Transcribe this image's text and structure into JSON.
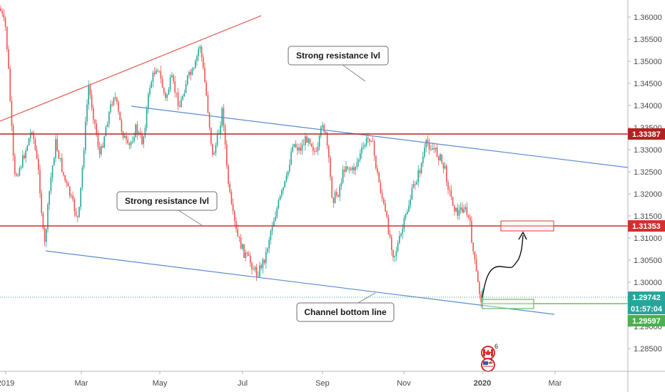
{
  "chart_data": {
    "type": "candlestick",
    "x_axis": {
      "ticks": [
        "2019",
        "Mar",
        "May",
        "Jul",
        "Sep",
        "Nov",
        "2020",
        "Mar"
      ]
    },
    "y_axis": {
      "range": [
        1.2825,
        1.3635
      ],
      "ticks": [
        "1.36000",
        "1.35500",
        "1.35000",
        "1.34500",
        "1.34000",
        "1.33500",
        "1.33000",
        "1.32500",
        "1.32000",
        "1.31500",
        "1.31000",
        "1.30500",
        "1.30000",
        "1.29500",
        "1.29000",
        "1.28500"
      ]
    },
    "price_levels": [
      {
        "value": 1.33387,
        "label": "1.33387",
        "color": "#b22222",
        "style": "solid"
      },
      {
        "value": 1.31353,
        "label": "1.31353",
        "color": "#d32f2f",
        "style": "solid"
      },
      {
        "value": 1.29742,
        "label": "1.29742",
        "color": "#26a69a",
        "style": "dotted"
      },
      {
        "value": 1.29597,
        "label": "1.29597",
        "color": "#4caf50",
        "style": "solid"
      }
    ],
    "countdown": "01:57:04",
    "annotations": [
      {
        "text": "Strong resistance lvl"
      },
      {
        "text": "Strong resistance lvl"
      },
      {
        "text": "Channel bottom line"
      }
    ],
    "badges": [
      {
        "flag": "canada-flag",
        "count": "6"
      },
      {
        "flag": "usa-flag",
        "count": "2"
      }
    ],
    "colors": {
      "up": "#26a69a",
      "down": "#ef5350",
      "channel": "#5b8bd0",
      "trend": "#e0524a"
    }
  }
}
